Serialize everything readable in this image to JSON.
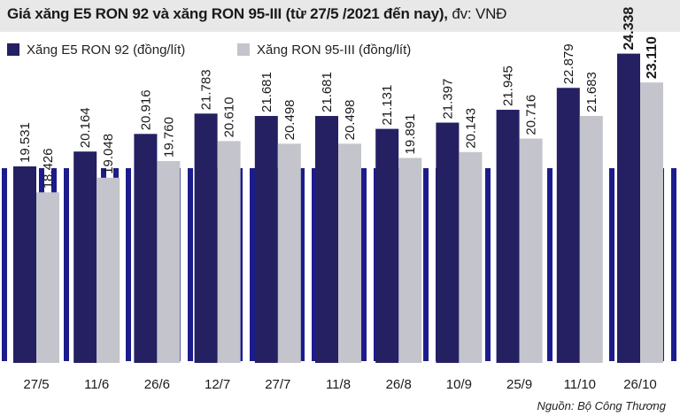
{
  "header": {
    "title": "Giá xăng E5 RON 92 và xăng RON 95-III (từ 27/5 /2021 đến nay),",
    "unit": " đv: VNĐ"
  },
  "source": "Nguồn: Bộ Công Thương",
  "colors": {
    "series1": "#242062",
    "series2": "#c4c4cc",
    "stripe": "#1c1c8c",
    "title_bg": "#e8e8e8"
  },
  "chart_data": {
    "type": "bar",
    "categories": [
      "27/5",
      "11/6",
      "26/6",
      "12/7",
      "27/7",
      "11/8",
      "26/8",
      "10/9",
      "25/9",
      "11/10",
      "26/10"
    ],
    "series": [
      {
        "name": "Xăng E5 RON 92 (đồng/lít)",
        "values": [
          19531,
          20164,
          20916,
          21783,
          21681,
          21681,
          21131,
          21397,
          21945,
          22879,
          24338
        ],
        "labels": [
          "19.531",
          "20.164",
          "20.916",
          "21.783",
          "21.681",
          "21.681",
          "21.131",
          "21.397",
          "21.945",
          "22.879",
          "24.338"
        ]
      },
      {
        "name": "Xăng RON 95-III (đồng/lít)",
        "values": [
          18426,
          19048,
          19760,
          20610,
          20498,
          20498,
          19891,
          20143,
          20716,
          21683,
          23110
        ],
        "labels": [
          "18.426",
          "19.048",
          "19.760",
          "20.610",
          "20.498",
          "20.498",
          "19.891",
          "20.143",
          "20.716",
          "21.683",
          "23.110"
        ]
      }
    ],
    "legend": "top-left",
    "grid": false
  }
}
